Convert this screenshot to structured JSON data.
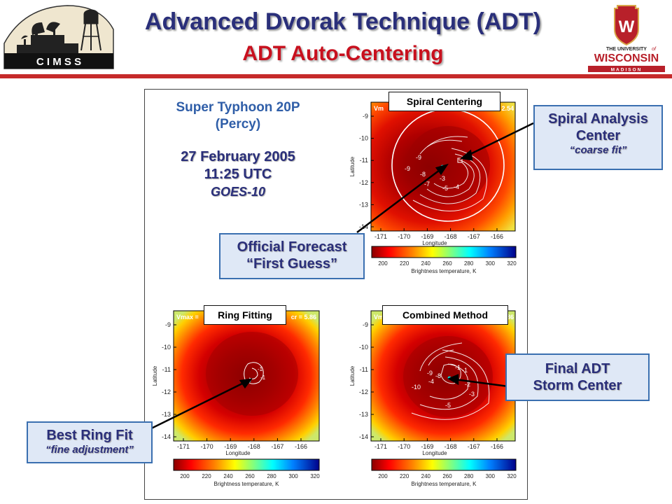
{
  "header": {
    "title": "Advanced Dvorak Technique (ADT)",
    "subtitle": "ADT Auto-Centering",
    "cimss_logo_text": "C I M S S",
    "uw_logo_line1": "THE UNIVERSITY",
    "uw_logo_line2": "of",
    "uw_logo_line3": "WISCONSIN",
    "uw_logo_line4": "MADISON",
    "colors": {
      "title": "#2a2f7a",
      "subtitle": "#c8101e",
      "divider": "#c62a2a"
    }
  },
  "storm_info": {
    "name_line1": "Super Typhoon 20P",
    "name_line2": "(Percy)",
    "date": "27 February 2005",
    "time": "11:25 UTC",
    "satellite": "GOES-10"
  },
  "panels": {
    "spiral": {
      "label": "Spiral Centering",
      "top_left_text": "Vm",
      "top_right_text": "2.54",
      "contour_labels": [
        "-9",
        "-9",
        "-8",
        "-7",
        "-5",
        "-3",
        "-4",
        "-1"
      ]
    },
    "ring": {
      "label": "Ring Fitting",
      "top_left_text": "Vmax =",
      "top_right_text": "cr = 5.86",
      "contour_labels": [
        "-1",
        "-1"
      ]
    },
    "combined": {
      "label": "Combined Method",
      "top_left_text": "Vm",
      "top_right_text": "86",
      "contour_labels": [
        "-9",
        "-8",
        "-4",
        "-1",
        "-10",
        "-5",
        "-3",
        "-2",
        "-1"
      ]
    }
  },
  "axes": {
    "ylabel": "Latitude",
    "xlabel": "Longitude",
    "yticks": [
      "-9",
      "-10",
      "-11",
      "-12",
      "-13",
      "-14"
    ],
    "xticks": [
      "-171",
      "-170",
      "-169",
      "-168",
      "-167",
      "-166"
    ],
    "colorbar_ticks": [
      "200",
      "220",
      "240",
      "260",
      "280",
      "300",
      "320"
    ],
    "colorbar_label": "Brightness temperature, K"
  },
  "callouts": {
    "spiral_center": {
      "line1": "Spiral Analysis",
      "line2": "Center",
      "line3": "“coarse fit”"
    },
    "first_guess": {
      "line1": "Official Forecast",
      "line2": "“First Guess”"
    },
    "final_center": {
      "line1": "Final ADT",
      "line2": "Storm Center"
    },
    "best_ring": {
      "line1": "Best Ring Fit",
      "line2": "“fine adjustment”"
    }
  }
}
